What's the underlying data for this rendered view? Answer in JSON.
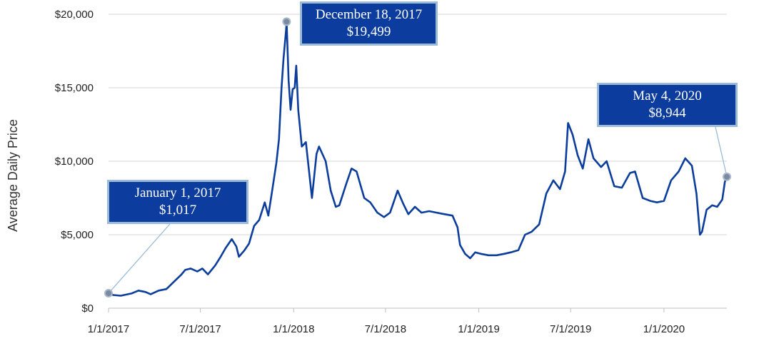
{
  "chart_data": {
    "type": "line",
    "ylabel": "Average Daily Price",
    "xlabel": "",
    "title": "",
    "ylim": [
      0,
      20000
    ],
    "yticks": [
      0,
      5000,
      10000,
      15000,
      20000
    ],
    "ytick_labels": [
      "$0",
      "$5,000",
      "$10,000",
      "$15,000",
      "$20,000"
    ],
    "xlim": [
      "2017-01-01",
      "2020-05-04"
    ],
    "xticks": [
      "2017-01-01",
      "2017-07-01",
      "2018-01-01",
      "2018-07-01",
      "2019-01-01",
      "2019-07-01",
      "2020-01-01"
    ],
    "xtick_labels": [
      "1/1/2017",
      "7/1/2017",
      "1/1/2018",
      "7/1/2018",
      "1/1/2019",
      "7/1/2019",
      "1/1/2020"
    ],
    "grid": "horizontal",
    "line_color": "#0b3d9c",
    "series": [
      {
        "name": "",
        "x": [
          "2017-01-01",
          "2017-01-10",
          "2017-01-25",
          "2017-02-15",
          "2017-03-01",
          "2017-03-15",
          "2017-03-25",
          "2017-04-10",
          "2017-04-25",
          "2017-05-10",
          "2017-05-25",
          "2017-06-01",
          "2017-06-12",
          "2017-06-25",
          "2017-07-05",
          "2017-07-16",
          "2017-07-30",
          "2017-08-10",
          "2017-08-20",
          "2017-09-01",
          "2017-09-10",
          "2017-09-15",
          "2017-09-25",
          "2017-10-05",
          "2017-10-15",
          "2017-10-25",
          "2017-11-05",
          "2017-11-12",
          "2017-11-20",
          "2017-11-28",
          "2017-12-03",
          "2017-12-08",
          "2017-12-12",
          "2017-12-17",
          "2017-12-18",
          "2017-12-22",
          "2017-12-26",
          "2017-12-30",
          "2018-01-03",
          "2018-01-06",
          "2018-01-10",
          "2018-01-17",
          "2018-01-25",
          "2018-02-06",
          "2018-02-15",
          "2018-02-20",
          "2018-03-05",
          "2018-03-15",
          "2018-03-25",
          "2018-04-01",
          "2018-04-15",
          "2018-04-25",
          "2018-05-05",
          "2018-05-20",
          "2018-06-01",
          "2018-06-15",
          "2018-06-28",
          "2018-07-10",
          "2018-07-25",
          "2018-08-05",
          "2018-08-15",
          "2018-08-28",
          "2018-09-10",
          "2018-09-25",
          "2018-10-10",
          "2018-10-25",
          "2018-11-10",
          "2018-11-20",
          "2018-11-25",
          "2018-12-05",
          "2018-12-15",
          "2018-12-25",
          "2019-01-05",
          "2019-01-20",
          "2019-02-05",
          "2019-02-20",
          "2019-03-05",
          "2019-03-20",
          "2019-04-02",
          "2019-04-15",
          "2019-04-30",
          "2019-05-14",
          "2019-05-28",
          "2019-06-10",
          "2019-06-20",
          "2019-06-26",
          "2019-07-05",
          "2019-07-15",
          "2019-07-25",
          "2019-08-05",
          "2019-08-15",
          "2019-08-30",
          "2019-09-10",
          "2019-09-25",
          "2019-10-10",
          "2019-10-26",
          "2019-11-05",
          "2019-11-20",
          "2019-12-05",
          "2019-12-18",
          "2020-01-01",
          "2020-01-15",
          "2020-01-30",
          "2020-02-12",
          "2020-02-25",
          "2020-03-05",
          "2020-03-12",
          "2020-03-16",
          "2020-03-25",
          "2020-04-05",
          "2020-04-15",
          "2020-04-25",
          "2020-04-30",
          "2020-05-04"
        ],
        "y": [
          1017,
          900,
          850,
          1000,
          1200,
          1100,
          950,
          1200,
          1300,
          1800,
          2300,
          2600,
          2700,
          2500,
          2700,
          2300,
          2900,
          3500,
          4100,
          4700,
          4200,
          3500,
          3900,
          4400,
          5600,
          6000,
          7200,
          6300,
          8100,
          9900,
          11500,
          15000,
          17000,
          18900,
          19499,
          15500,
          13500,
          14900,
          15000,
          16500,
          13500,
          11000,
          11300,
          7500,
          10500,
          11000,
          10000,
          8000,
          6900,
          7000,
          8500,
          9500,
          9300,
          7500,
          7200,
          6500,
          6200,
          6500,
          8000,
          7100,
          6400,
          6900,
          6500,
          6600,
          6500,
          6400,
          6300,
          5500,
          4300,
          3700,
          3400,
          3800,
          3700,
          3600,
          3600,
          3700,
          3800,
          3950,
          5000,
          5200,
          5700,
          7800,
          8700,
          8100,
          9300,
          12600,
          11800,
          10400,
          9500,
          11500,
          10200,
          9600,
          10000,
          8300,
          8200,
          9200,
          9300,
          7500,
          7300,
          7200,
          7300,
          8700,
          9300,
          10200,
          9700,
          7800,
          5000,
          5200,
          6700,
          7000,
          6900,
          7400,
          8600,
          8944
        ]
      }
    ],
    "annotations": [
      {
        "line1": "January  1, 2017",
        "line2": "$1,017",
        "x": "2017-01-01",
        "y": 1017
      },
      {
        "line1": "December  18, 2017",
        "line2": "$19,499",
        "x": "2017-12-18",
        "y": 19499
      },
      {
        "line1": "May  4, 2020",
        "line2": "$8,944",
        "x": "2020-05-04",
        "y": 8944
      }
    ]
  }
}
